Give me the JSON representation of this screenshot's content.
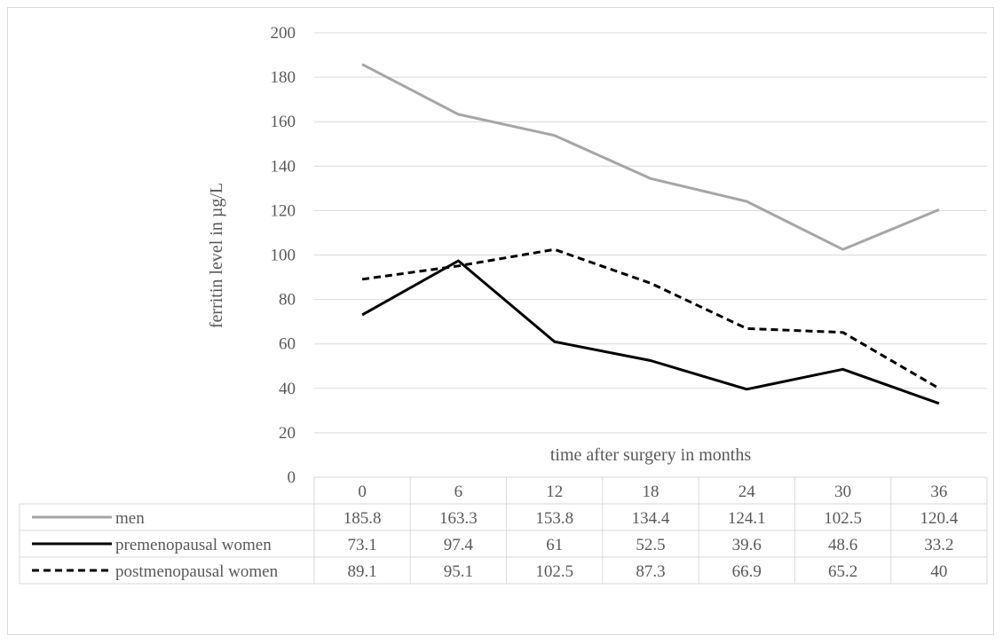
{
  "chart_data": {
    "type": "line",
    "xlabel": "time after surgery in months",
    "ylabel": "ferritin level in µg/L",
    "ylim": [
      0,
      200
    ],
    "ytick_step": 20,
    "grid": true,
    "categories": [
      "0",
      "6",
      "12",
      "18",
      "24",
      "30",
      "36"
    ],
    "series": [
      {
        "name": "men",
        "color": "#a6a6a6",
        "dash": "solid",
        "values": [
          185.8,
          163.3,
          153.8,
          134.4,
          124.1,
          102.5,
          120.4
        ]
      },
      {
        "name": "premenopausal women",
        "color": "#000000",
        "dash": "solid",
        "values": [
          73.1,
          97.4,
          61,
          52.5,
          39.6,
          48.6,
          33.2
        ]
      },
      {
        "name": "postmenopausal women",
        "color": "#000000",
        "dash": "dashed",
        "values": [
          89.1,
          95.1,
          102.5,
          87.3,
          66.9,
          65.2,
          40
        ]
      }
    ],
    "legend_placement": "data-table"
  }
}
